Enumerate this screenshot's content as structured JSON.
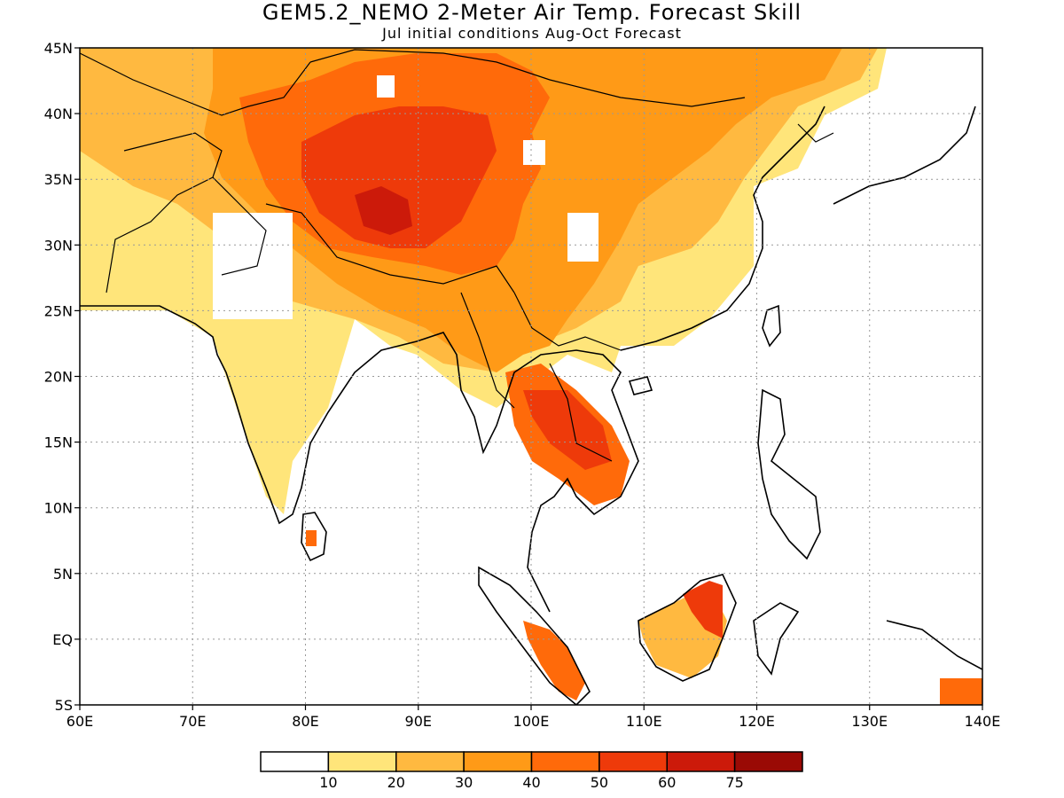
{
  "title": "GEM5.2_NEMO 2-Meter Air Temp. Forecast Skill",
  "subtitle": "Jul initial conditions  Aug-Oct Forecast",
  "map": {
    "lon_range": [
      60,
      140
    ],
    "lat_range": [
      -5,
      45
    ],
    "lon_ticks": [
      {
        "value": 60,
        "label": "60E"
      },
      {
        "value": 70,
        "label": "70E"
      },
      {
        "value": 80,
        "label": "80E"
      },
      {
        "value": 90,
        "label": "90E"
      },
      {
        "value": 100,
        "label": "100E"
      },
      {
        "value": 110,
        "label": "110E"
      },
      {
        "value": 120,
        "label": "120E"
      },
      {
        "value": 130,
        "label": "130E"
      },
      {
        "value": 140,
        "label": "140E"
      }
    ],
    "lat_ticks": [
      {
        "value": 45,
        "label": "45N"
      },
      {
        "value": 40,
        "label": "40N"
      },
      {
        "value": 35,
        "label": "35N"
      },
      {
        "value": 30,
        "label": "30N"
      },
      {
        "value": 25,
        "label": "25N"
      },
      {
        "value": 20,
        "label": "20N"
      },
      {
        "value": 15,
        "label": "15N"
      },
      {
        "value": 10,
        "label": "10N"
      },
      {
        "value": 5,
        "label": "5N"
      },
      {
        "value": 0,
        "label": "EQ"
      },
      {
        "value": -5,
        "label": "5S"
      }
    ]
  },
  "legend": {
    "colors": [
      "#ffffff",
      "#ffe57a",
      "#ffb940",
      "#ff9a17",
      "#ff6a0a",
      "#ee3a0a",
      "#cc1a0a",
      "#9a0a05"
    ],
    "labels": [
      "10",
      "20",
      "30",
      "40",
      "50",
      "60",
      "75"
    ]
  }
}
